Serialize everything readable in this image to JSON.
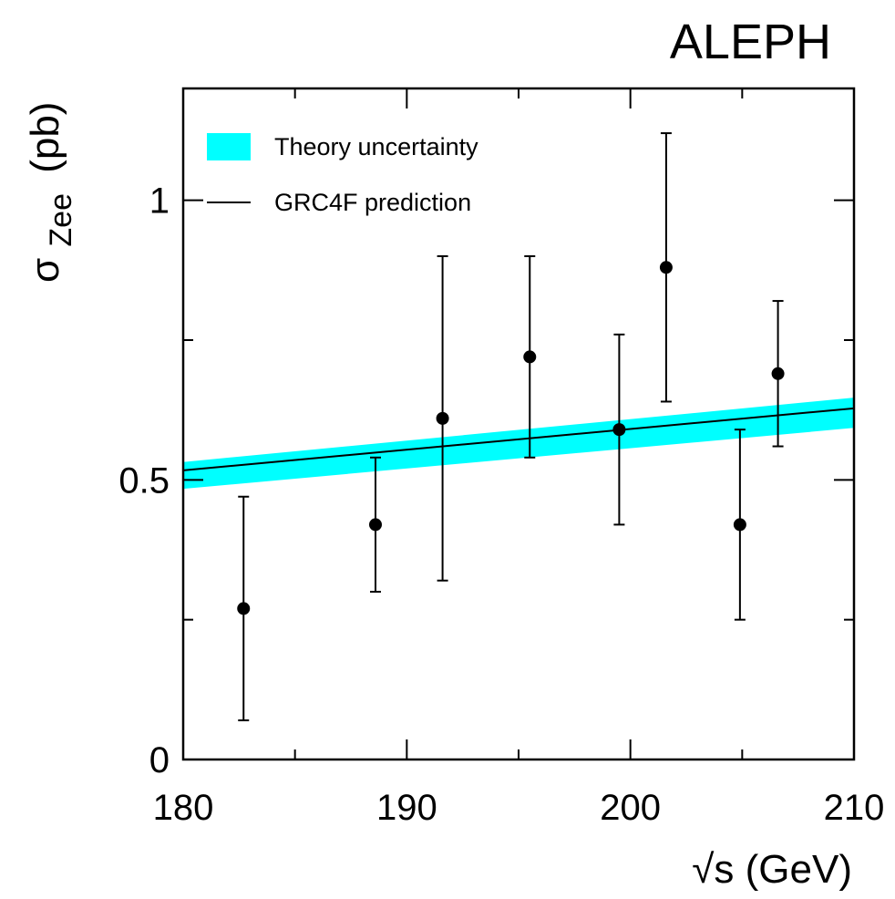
{
  "chart_data": {
    "type": "scatter",
    "experiment_label": "ALEPH",
    "xlabel": "√s (GeV)",
    "ylabel": {
      "symbol": "σ",
      "subscript": "Zee",
      "unit": "(pb)"
    },
    "xlim": [
      180,
      210
    ],
    "ylim": [
      0,
      1.2
    ],
    "x_major_ticks": [
      180,
      190,
      200,
      210
    ],
    "x_minor_ticks": [
      185,
      195,
      205
    ],
    "y_major_ticks": [
      0,
      0.5,
      1
    ],
    "y_tick_labels": [
      "0",
      "0.5",
      "1"
    ],
    "y_minor_ticks": [
      0.25,
      0.75
    ],
    "grid": false,
    "legend_position": "top-left",
    "legend": [
      {
        "label": "Theory uncertainty",
        "kind": "band",
        "color": "#00ffff"
      },
      {
        "label": "GRC4F prediction",
        "kind": "line",
        "color": "#000000"
      }
    ],
    "prediction": {
      "x": [
        180,
        210
      ],
      "y": [
        0.517,
        0.628
      ]
    },
    "band": {
      "x": [
        180,
        210
      ],
      "lower": [
        0.484,
        0.593
      ],
      "upper": [
        0.532,
        0.647
      ]
    },
    "data_points": [
      {
        "x": 182.7,
        "y": 0.27,
        "low": 0.07,
        "high": 0.47
      },
      {
        "x": 188.6,
        "y": 0.42,
        "low": 0.3,
        "high": 0.54
      },
      {
        "x": 191.6,
        "y": 0.61,
        "low": 0.32,
        "high": 0.9
      },
      {
        "x": 195.5,
        "y": 0.72,
        "low": 0.54,
        "high": 0.9
      },
      {
        "x": 199.5,
        "y": 0.59,
        "low": 0.42,
        "high": 0.76
      },
      {
        "x": 201.6,
        "y": 0.88,
        "low": 0.64,
        "high": 1.12
      },
      {
        "x": 204.9,
        "y": 0.42,
        "low": 0.25,
        "high": 0.59
      },
      {
        "x": 206.6,
        "y": 0.69,
        "low": 0.56,
        "high": 0.82
      }
    ]
  }
}
